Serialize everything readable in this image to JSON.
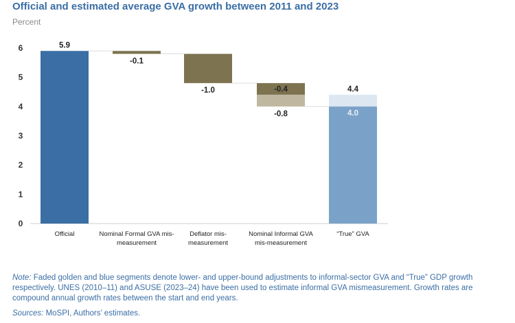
{
  "title": "Official and estimated average GVA growth between 2011 and 2023",
  "unit_label": "Percent",
  "chart_data": {
    "type": "bar",
    "subtype": "waterfall",
    "ylim": [
      0,
      6
    ],
    "yticks": [
      "0",
      "1",
      "2",
      "3",
      "4",
      "5",
      "6"
    ],
    "grid": false,
    "categories": [
      "Official",
      "Nominal Formal GVA mis-measurement",
      "Deflator mis-measurement",
      "Nominal Informal GVA mis-measurement",
      "“True” GVA"
    ],
    "segments": [
      {
        "category": 0,
        "from": 0,
        "to": 5.9,
        "label": "5.9",
        "color": "#3a6ea5"
      },
      {
        "category": 1,
        "from": 5.9,
        "to": 5.8,
        "label": "-0.1",
        "color": "#7d7350"
      },
      {
        "category": 2,
        "from": 5.8,
        "to": 4.8,
        "label": "-1.0",
        "color": "#7d7350"
      },
      {
        "category": 3,
        "from": 4.8,
        "to": 4.4,
        "label": "-0.4",
        "color": "#7d7350"
      },
      {
        "category": 3,
        "from": 4.4,
        "to": 4.0,
        "label": "-0.8",
        "color": "#bfb7a0"
      },
      {
        "category": 4,
        "from": 4.0,
        "to": 4.4,
        "label": "4.4",
        "color": "#dce7f2"
      },
      {
        "category": 4,
        "from": 0,
        "to": 4.0,
        "label": "4.0",
        "color": "#7aa2c8"
      }
    ]
  },
  "note_label": "Note:",
  "note_text": " Faded golden and blue segments denote lower- and upper-bound adjustments to informal-sector GVA and “True” GDP growth respectively. UNES (2010–11) and ASUSE (2023–24) have been used to estimate informal GVA mismeasurement. Growth rates are compound annual growth rates between the start and end years.",
  "sources_label": "Sources:",
  "sources_text": " MoSPI, Authors’ estimates."
}
